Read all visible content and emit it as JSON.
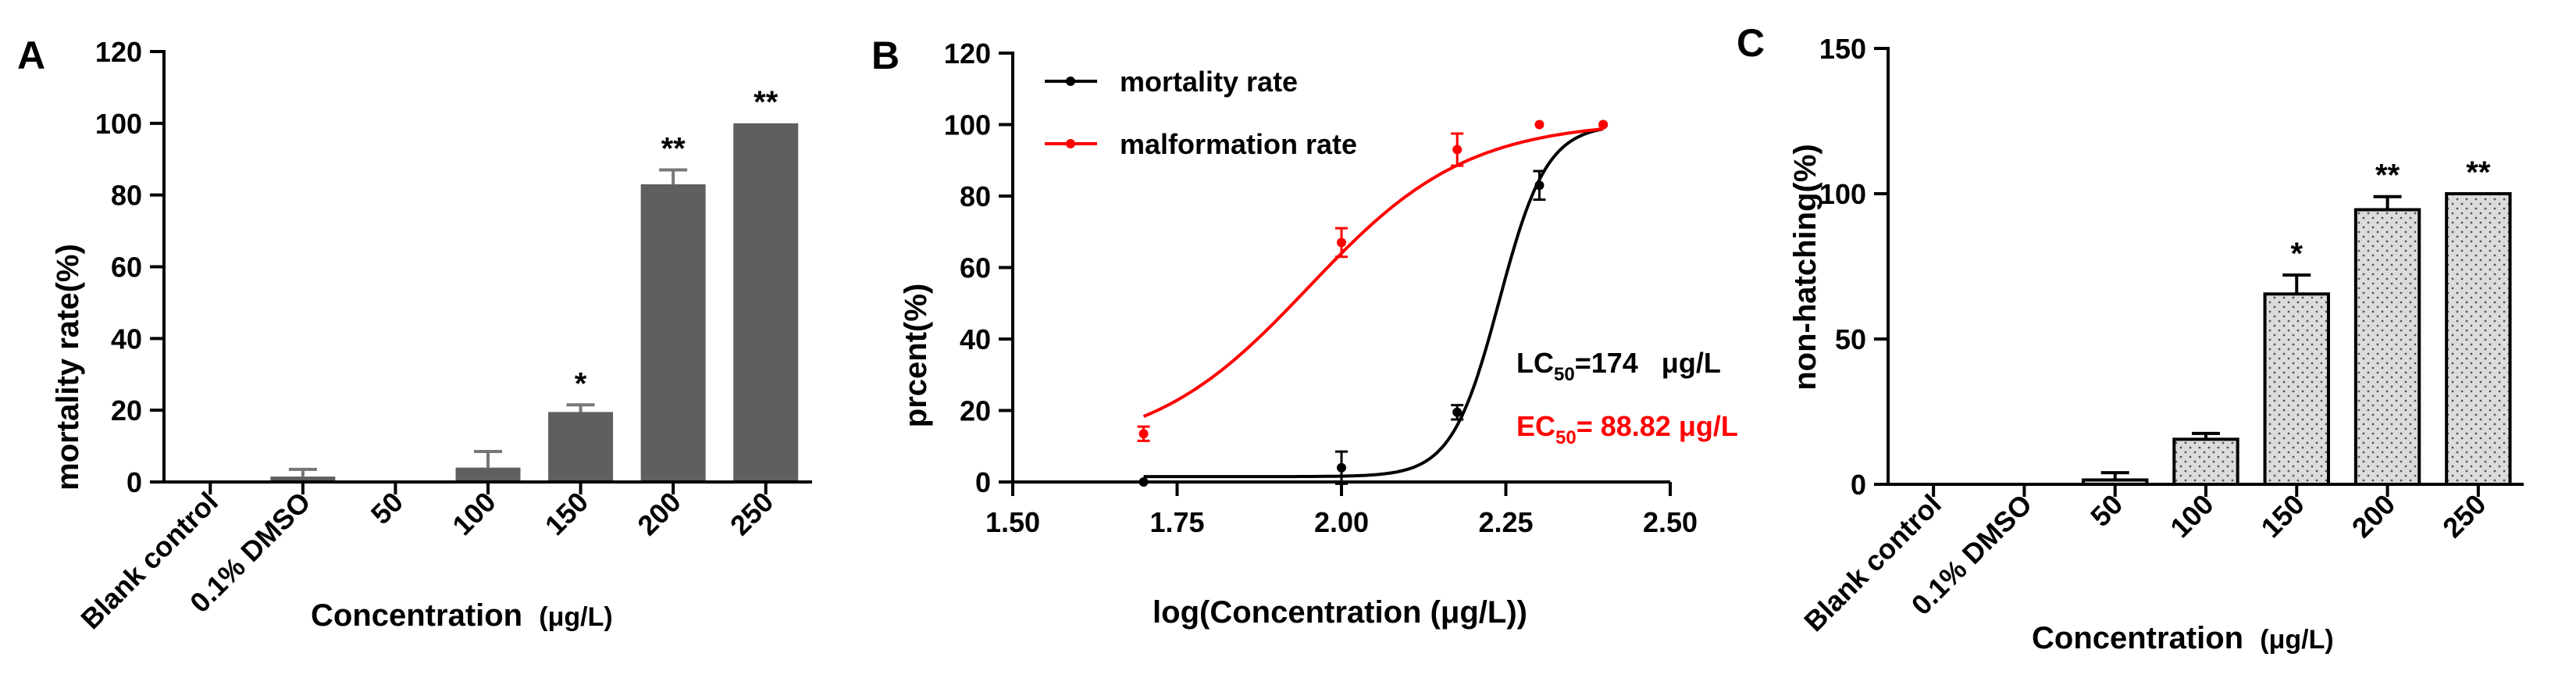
{
  "chart_data": [
    {
      "panel": "A",
      "type": "bar",
      "categories": [
        "Blank control",
        "0.1% DMSO",
        "50",
        "100",
        "150",
        "200",
        "250"
      ],
      "values": [
        0,
        1.5,
        0,
        4,
        19.5,
        83,
        100
      ],
      "errors": [
        0,
        2,
        0,
        4.5,
        2,
        4,
        0
      ],
      "significance": [
        "",
        "",
        "",
        "",
        "*",
        "**",
        "**"
      ],
      "ylabel": "mortality rate(%)",
      "xlabel": "Concentration",
      "xlabel_unit": "(μg/L)",
      "ylim": [
        0,
        120
      ],
      "yticks": [
        0,
        20,
        40,
        60,
        80,
        100,
        120
      ],
      "bar_color": "#5f5f5f"
    },
    {
      "panel": "B",
      "type": "line",
      "xlabel": "log(Concentration (μg/L))",
      "ylabel": "prcent(%)",
      "xlim": [
        1.5,
        2.5
      ],
      "ylim": [
        0,
        120
      ],
      "xticks": [
        "1.50",
        "1.75",
        "2.00",
        "2.25",
        "2.50"
      ],
      "yticks": [
        0,
        20,
        40,
        60,
        80,
        100,
        120
      ],
      "series": [
        {
          "name": "mortality rate",
          "color": "#000000",
          "x": [
            1.699,
            2.0,
            2.176,
            2.301,
            2.398
          ],
          "y": [
            0,
            4,
            19.5,
            83,
            100
          ],
          "err": [
            0,
            4.5,
            2,
            4,
            0
          ],
          "fit": {
            "bottom": 1.5,
            "top": 100,
            "logEC50": 2.24,
            "hill": 12
          }
        },
        {
          "name": "malformation rate",
          "color": "#ff0000",
          "x": [
            1.699,
            2.0,
            2.176,
            2.301,
            2.398
          ],
          "y": [
            13.5,
            67,
            93,
            100,
            100
          ],
          "err": [
            2,
            4,
            4.5,
            0,
            0
          ],
          "fit": {
            "bottom": 8,
            "top": 101,
            "logEC50": 1.95,
            "hill": 3.6
          }
        }
      ],
      "annotations": {
        "lc50": {
          "label": "LC",
          "sub": "50",
          "value": "=174   μg/L",
          "color": "#000000"
        },
        "ec50": {
          "label": "EC",
          "sub": "50",
          "value": "= 88.82 μg/L",
          "color": "#ff0000"
        }
      }
    },
    {
      "panel": "C",
      "type": "bar",
      "categories": [
        "Blank control",
        "0.1% DMSO",
        "50",
        "100",
        "150",
        "200",
        "250"
      ],
      "values": [
        0,
        0,
        1.5,
        15.5,
        65.5,
        94.5,
        100
      ],
      "errors": [
        0,
        0,
        2.5,
        2,
        6.5,
        4.5,
        0
      ],
      "significance": [
        "",
        "",
        "",
        "",
        "*",
        "**",
        "**"
      ],
      "ylabel": "non-hatching(%)",
      "xlabel": "Concentration",
      "xlabel_unit": "(μg/L)",
      "ylim": [
        0,
        150
      ],
      "yticks": [
        0,
        50,
        100,
        150
      ],
      "bar_color": "#d8d8d8"
    }
  ]
}
